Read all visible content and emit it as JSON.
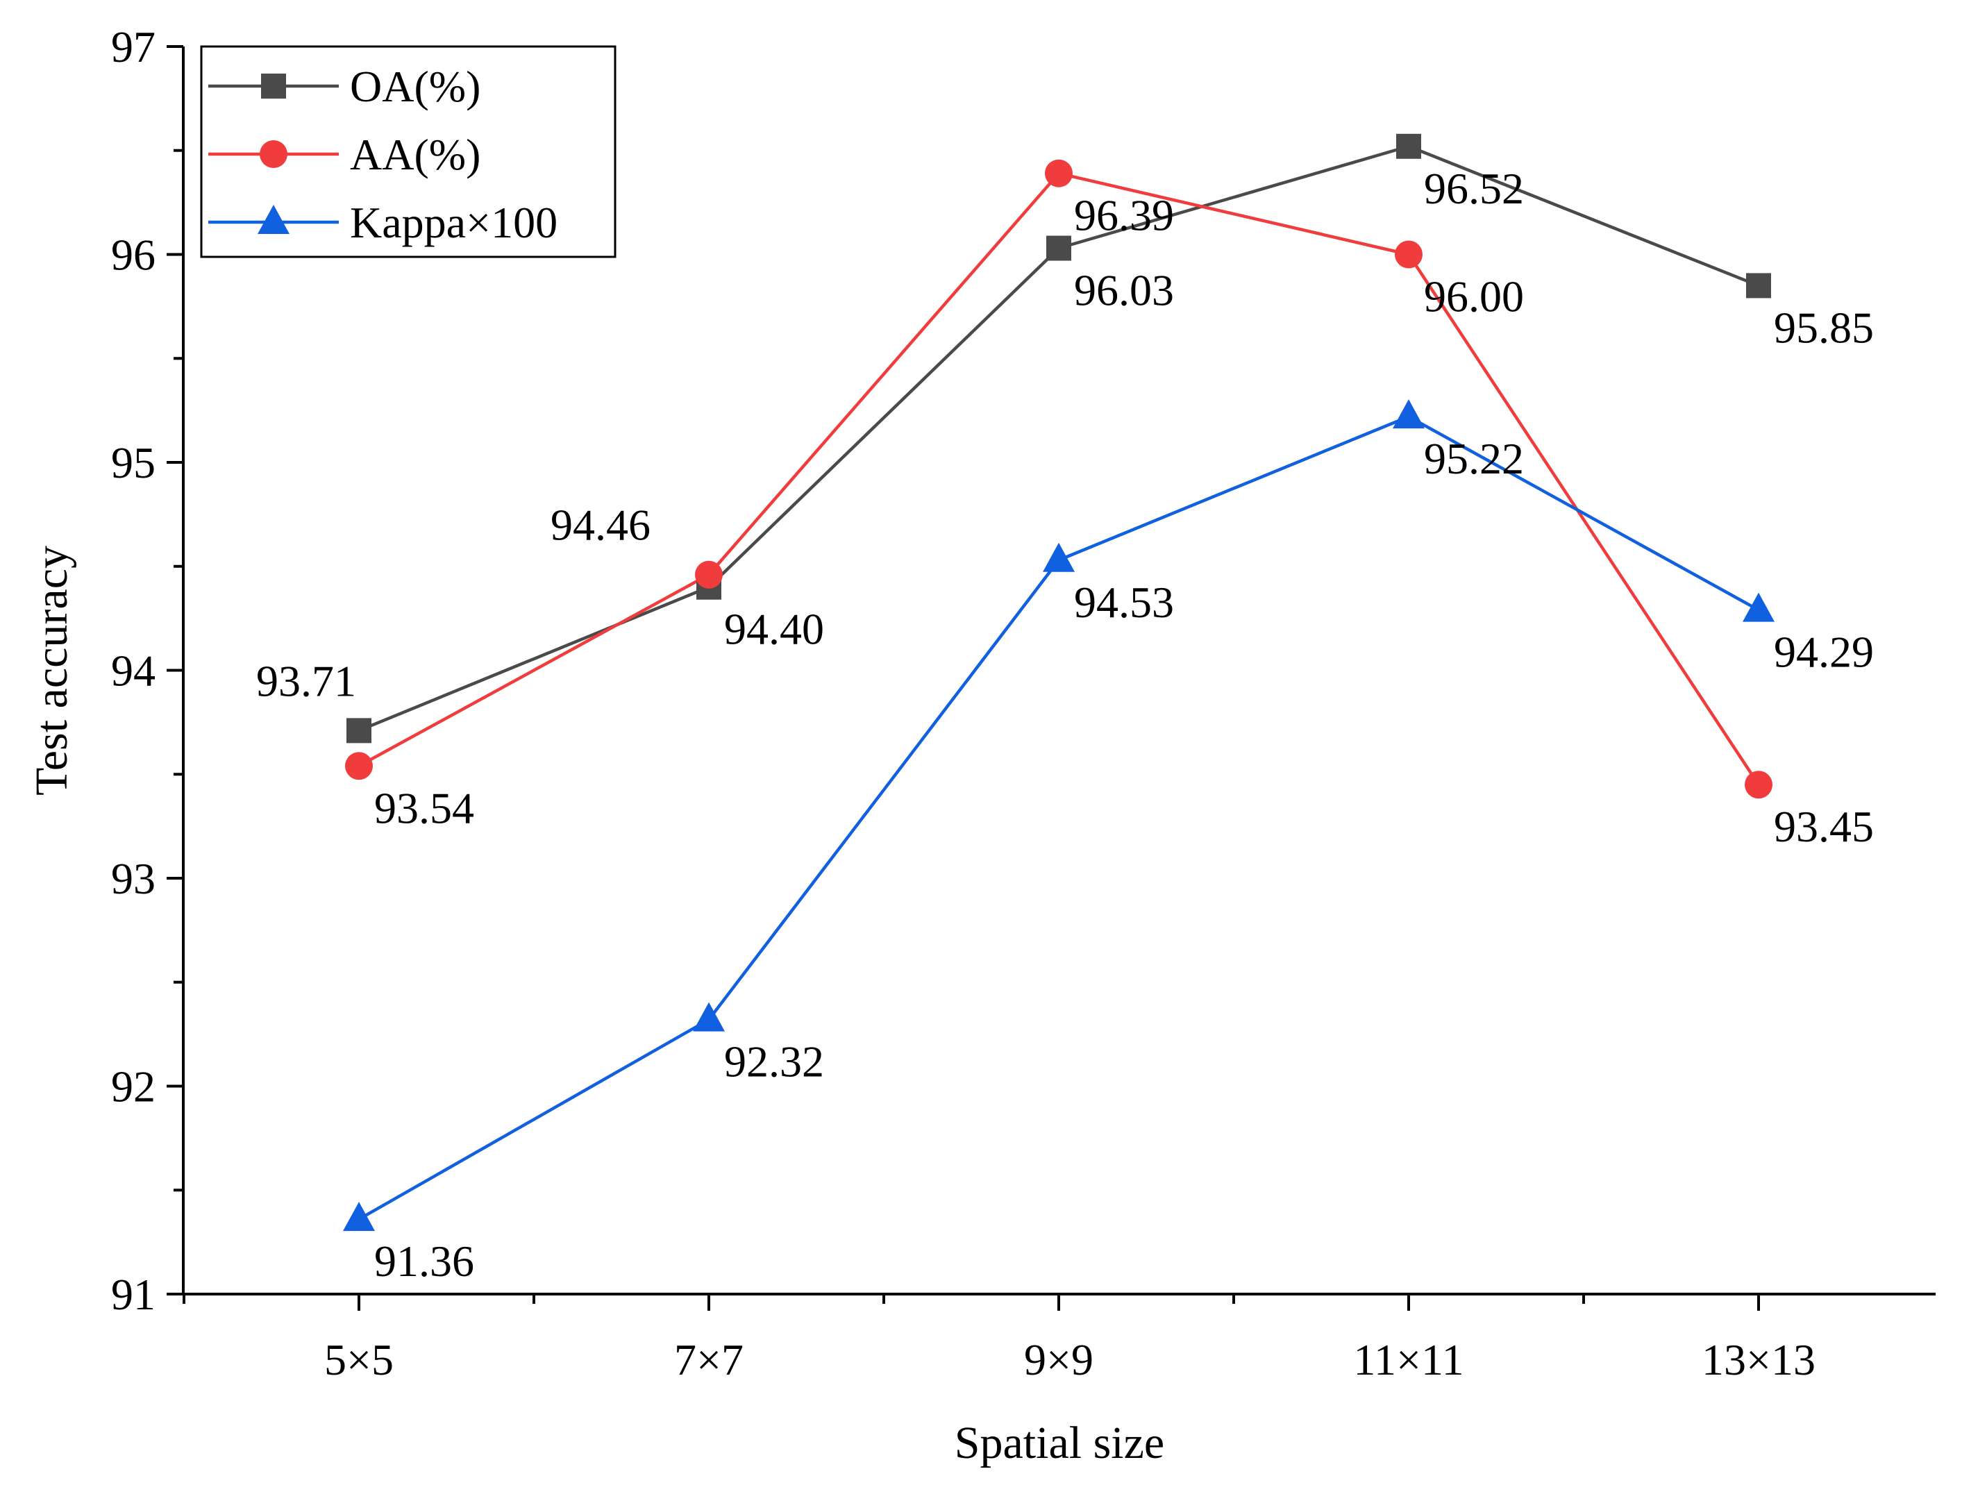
{
  "chart_data": {
    "type": "line",
    "title": "",
    "xlabel": "Spatial size",
    "ylabel": "Test accuracy",
    "categories": [
      "5×5",
      "7×7",
      "9×9",
      "11×11",
      "13×13"
    ],
    "ylim": [
      91,
      97
    ],
    "yticks": [
      91,
      92,
      93,
      94,
      95,
      96,
      97
    ],
    "ytick_labels": [
      "91",
      "92",
      "93",
      "94",
      "95",
      "96",
      "97"
    ],
    "grid": false,
    "legend_position": "top-left",
    "series": [
      {
        "name": "OA(%)",
        "color": "#4a4a4a",
        "marker": "square",
        "values": [
          93.71,
          94.4,
          96.03,
          96.52,
          95.85
        ],
        "labels": [
          "93.71",
          "94.40",
          "96.03",
          "96.52",
          "95.85"
        ]
      },
      {
        "name": "AA(%)",
        "color": "#f03c3c",
        "marker": "circle",
        "values": [
          93.54,
          94.46,
          96.39,
          96.0,
          93.45
        ],
        "labels": [
          "93.54",
          "94.46",
          "96.39",
          "96.00",
          "93.45"
        ]
      },
      {
        "name": "Kappa×100",
        "color": "#1060e0",
        "marker": "triangle",
        "values": [
          91.36,
          92.32,
          94.53,
          95.22,
          94.29
        ],
        "labels": [
          "91.36",
          "92.32",
          "94.53",
          "95.22",
          "94.29"
        ]
      }
    ]
  }
}
